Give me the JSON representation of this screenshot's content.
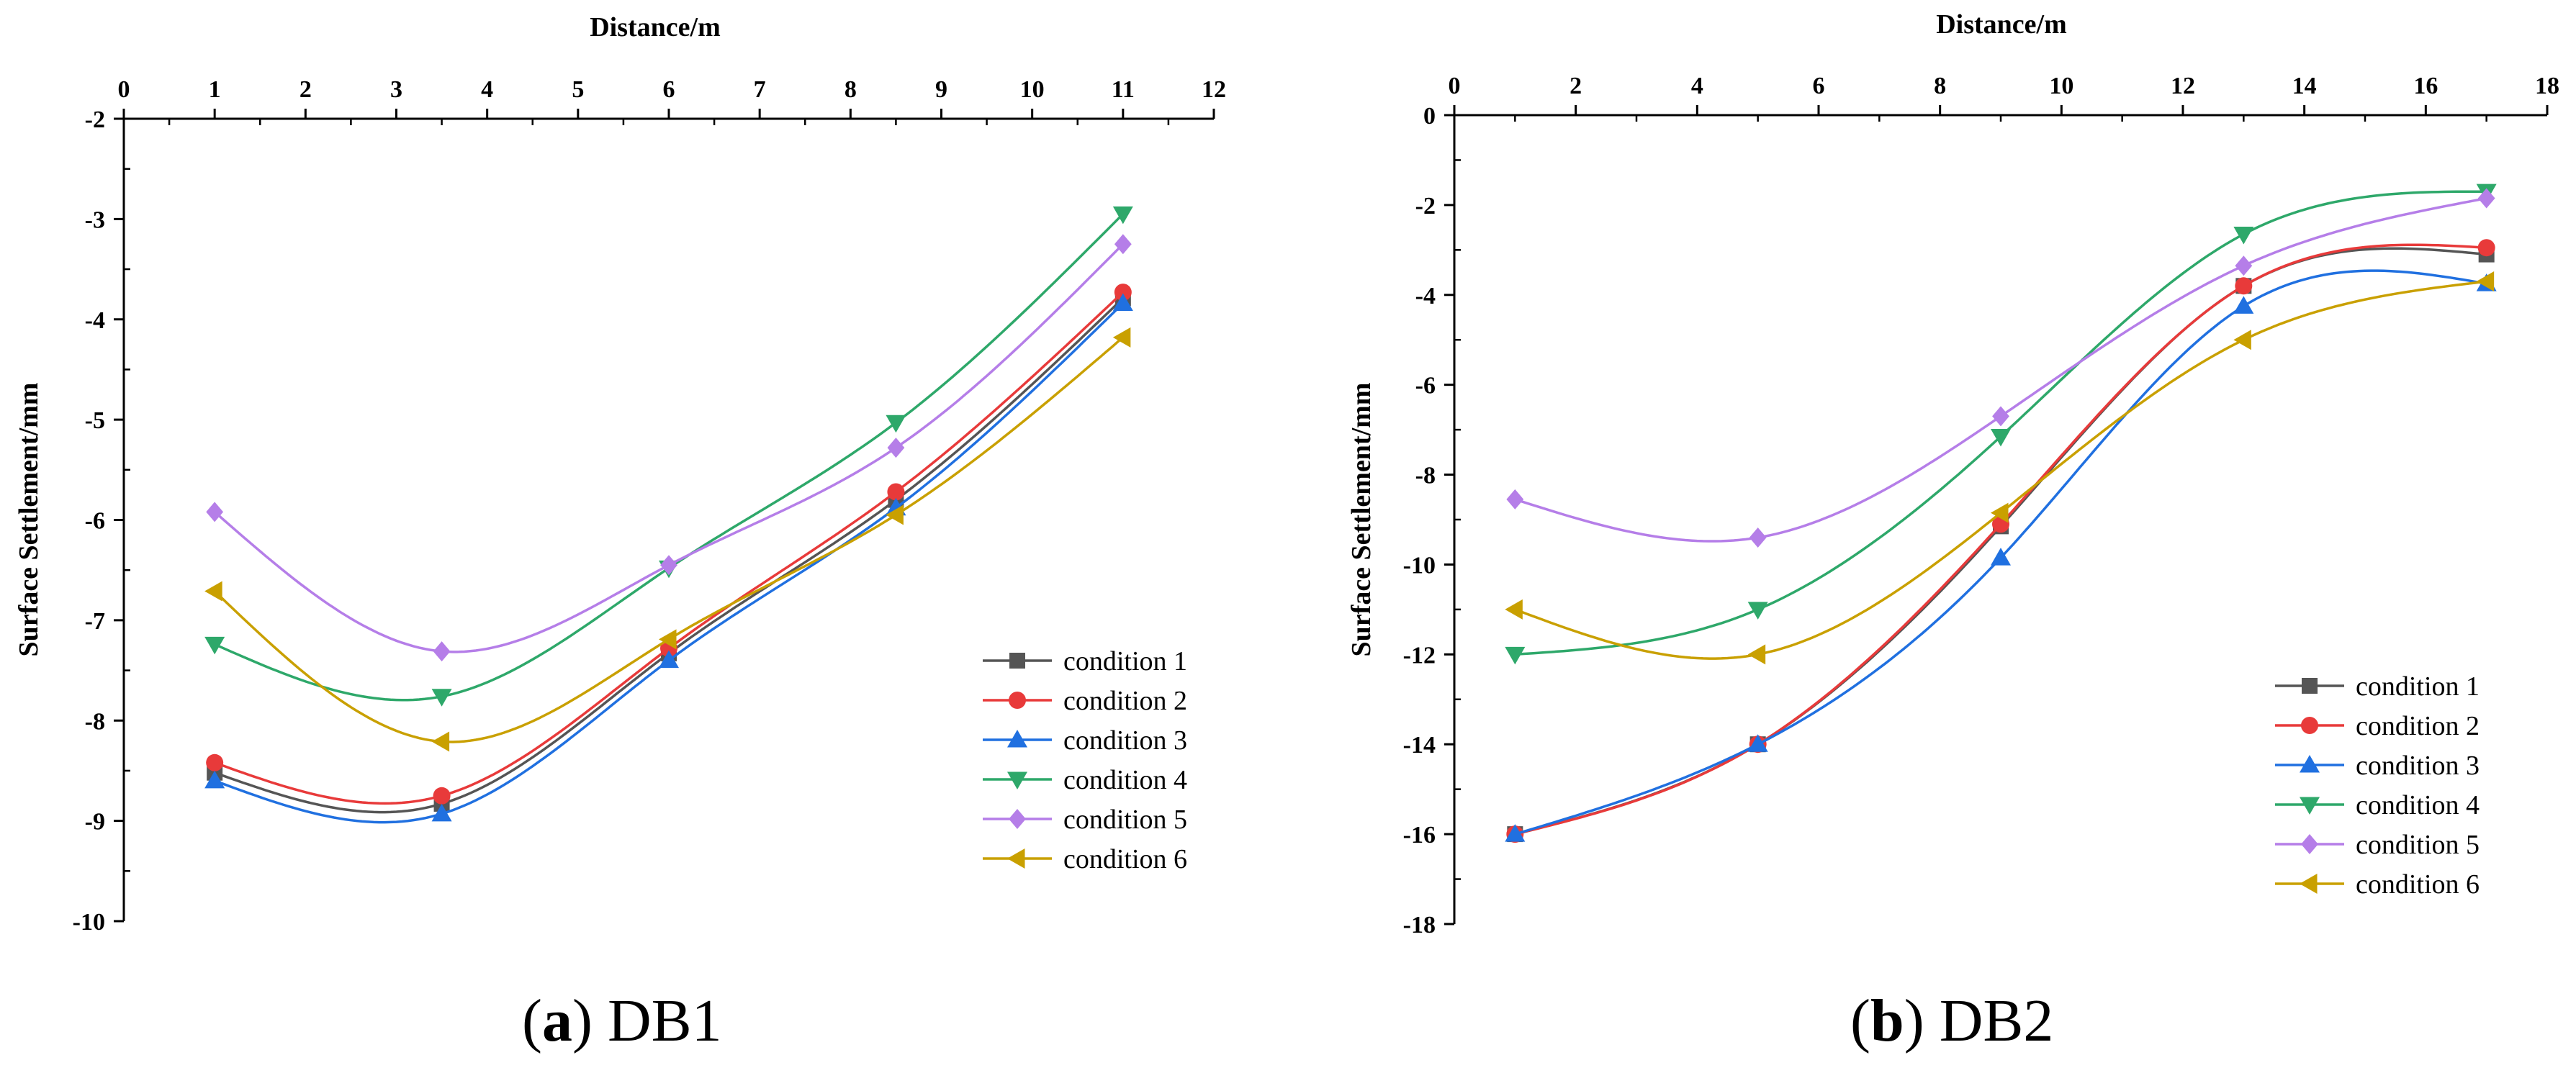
{
  "figure": {
    "captions": [
      {
        "paren_open": "(",
        "letter": "a",
        "paren_close": ")",
        "name": "DB1"
      },
      {
        "paren_open": "(",
        "letter": "b",
        "paren_close": ")",
        "name": "DB2"
      }
    ]
  },
  "series_styles": [
    {
      "color": "#555555",
      "marker": "square"
    },
    {
      "color": "#e83a3a",
      "marker": "circle"
    },
    {
      "color": "#2070e0",
      "marker": "triangle-up"
    },
    {
      "color": "#2ea86a",
      "marker": "triangle-down"
    },
    {
      "color": "#b57ee8",
      "marker": "diamond"
    },
    {
      "color": "#c9a000",
      "marker": "triangle-left"
    }
  ],
  "chart_data": [
    {
      "type": "line",
      "title": "(a) DB1",
      "xlabel": "Distance/m",
      "ylabel": "Surface Settlement/mm",
      "xlim": [
        0,
        12
      ],
      "ylim": [
        -10,
        -2
      ],
      "xticks": [
        "0",
        "1",
        "2",
        "3",
        "4",
        "5",
        "6",
        "7",
        "8",
        "9",
        "10",
        "11",
        "12"
      ],
      "yticks": [
        "-2",
        "-3",
        "-4",
        "-5",
        "-6",
        "-7",
        "-8",
        "-9",
        "-10"
      ],
      "x_axis_position": "top",
      "legend_position": "bottom-right",
      "x": [
        1,
        3.5,
        6,
        8.5,
        11
      ],
      "series": [
        {
          "name": "condition 1",
          "values": [
            -8.52,
            -8.83,
            -7.33,
            -5.8,
            -3.79
          ]
        },
        {
          "name": "condition 2",
          "values": [
            -8.42,
            -8.75,
            -7.28,
            -5.72,
            -3.73
          ]
        },
        {
          "name": "condition 3",
          "values": [
            -8.6,
            -8.93,
            -7.4,
            -5.88,
            -3.84
          ]
        },
        {
          "name": "condition 4",
          "values": [
            -7.24,
            -7.76,
            -6.48,
            -5.03,
            -2.95
          ]
        },
        {
          "name": "condition 5",
          "values": [
            -5.92,
            -7.31,
            -6.45,
            -5.28,
            -3.25
          ]
        },
        {
          "name": "condition 6",
          "values": [
            -6.71,
            -8.21,
            -7.19,
            -5.95,
            -4.18
          ]
        }
      ]
    },
    {
      "type": "line",
      "title": "(b) DB2",
      "xlabel": "Distance/m",
      "ylabel": "Surface Settlement/mm",
      "xlim": [
        0,
        18
      ],
      "ylim": [
        -18,
        0
      ],
      "xticks": [
        "0",
        "2",
        "4",
        "6",
        "8",
        "10",
        "12",
        "14",
        "16",
        "18"
      ],
      "yticks": [
        "0",
        "-2",
        "-4",
        "-6",
        "-8",
        "-10",
        "-12",
        "-14",
        "-16",
        "-18"
      ],
      "x_axis_position": "top",
      "legend_position": "bottom-right",
      "x": [
        1,
        5,
        9,
        13,
        17
      ],
      "series": [
        {
          "name": "condition 1",
          "values": [
            -16.0,
            -14.0,
            -9.15,
            -3.8,
            -3.1
          ]
        },
        {
          "name": "condition 2",
          "values": [
            -16.0,
            -14.0,
            -9.1,
            -3.8,
            -2.95
          ]
        },
        {
          "name": "condition 3",
          "values": [
            -16.0,
            -14.0,
            -9.85,
            -4.25,
            -3.75
          ]
        },
        {
          "name": "condition 4",
          "values": [
            -12.0,
            -11.0,
            -7.15,
            -2.65,
            -1.7
          ]
        },
        {
          "name": "condition 5",
          "values": [
            -8.55,
            -9.4,
            -6.7,
            -3.35,
            -1.85
          ]
        },
        {
          "name": "condition 6",
          "values": [
            -11.0,
            -12.0,
            -8.85,
            -5.0,
            -3.7
          ]
        }
      ]
    }
  ]
}
